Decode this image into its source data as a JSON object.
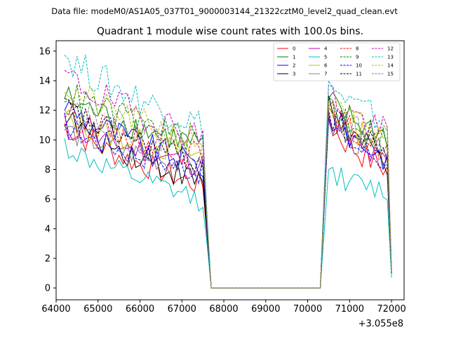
{
  "figure_title": "Data file: modeM0/AS1A05_037T01_9000003144_21322cztM0_level2_quad_clean.evt",
  "chart_data": {
    "type": "line",
    "title": "Quadrant 1 module wise count rates with 100.0s bins.",
    "xlabel": "",
    "ylabel": "",
    "x_offset_label": "+3.055e8",
    "xlim": [
      64000,
      72300
    ],
    "ylim": [
      -0.8,
      16.7
    ],
    "x_ticks": [
      64000,
      65000,
      66000,
      67000,
      68000,
      69000,
      70000,
      71000,
      72000
    ],
    "x_tick_labels": [
      "64000",
      "65000",
      "66000",
      "67000",
      "68000",
      "69000",
      "70000",
      "71000",
      "72000"
    ],
    "y_ticks": [
      0,
      2,
      4,
      6,
      8,
      10,
      12,
      14,
      16
    ],
    "y_tick_labels": [
      "0",
      "2",
      "4",
      "6",
      "8",
      "10",
      "12",
      "14",
      "16"
    ],
    "grid": false,
    "legend": "top-right",
    "segments": [
      {
        "name": "before_gap",
        "x_start": 64200,
        "x_end": 67500,
        "step": 100
      },
      {
        "name": "gap_transition",
        "x": [
          67600,
          67700
        ]
      },
      {
        "name": "gap",
        "x_start": 67700,
        "x_end": 70300,
        "value": 0
      },
      {
        "name": "after_gap",
        "x_start": 70500,
        "x_end": 71900,
        "step": 100
      },
      {
        "name": "end_drop",
        "x": [
          72000
        ]
      }
    ],
    "series": [
      {
        "name": "0",
        "color": "#ff0000",
        "dash": "solid",
        "start": 11.0,
        "end": 6.9,
        "at_67600": 3.5,
        "peak": 11.5,
        "after_end": 8.0,
        "final": 1.0
      },
      {
        "name": "1",
        "color": "#008000",
        "dash": "solid",
        "start": 13.0,
        "end": 9.6,
        "at_67600": 4.5,
        "peak": 12.8,
        "after_end": 10.3,
        "final": 1.2
      },
      {
        "name": "2",
        "color": "#0000ff",
        "dash": "solid",
        "start": 12.5,
        "end": 8.2,
        "at_67600": 4.0,
        "peak": 12.2,
        "after_end": 8.8,
        "final": 1.0
      },
      {
        "name": "3",
        "color": "#000000",
        "dash": "solid",
        "start": 11.7,
        "end": 7.1,
        "at_67600": 3.6,
        "peak": 13.0,
        "after_end": 8.4,
        "final": 1.0
      },
      {
        "name": "4",
        "color": "#bf00bf",
        "dash": "solid",
        "start": 11.0,
        "end": 8.3,
        "at_67600": 4.0,
        "peak": 11.8,
        "after_end": 8.3,
        "final": 1.0
      },
      {
        "name": "5",
        "color": "#00bfbf",
        "dash": "solid",
        "start": 9.7,
        "end": 5.9,
        "at_67600": 3.0,
        "peak": 8.0,
        "after_end": 6.5,
        "final": 0.7
      },
      {
        "name": "6",
        "color": "#bfbf00",
        "dash": "solid",
        "start": 11.5,
        "end": 8.9,
        "at_67600": 4.3,
        "peak": 12.2,
        "after_end": 9.8,
        "final": 1.1
      },
      {
        "name": "7",
        "color": "#808080",
        "dash": "solid",
        "start": 10.8,
        "end": 8.0,
        "at_67600": 3.9,
        "peak": 11.3,
        "after_end": 9.0,
        "final": 1.0
      },
      {
        "name": "8",
        "color": "#ff0000",
        "dash": "dashed",
        "start": 12.0,
        "end": 8.9,
        "at_67600": 4.3,
        "peak": 12.3,
        "after_end": 9.3,
        "final": 1.1
      },
      {
        "name": "9",
        "color": "#008000",
        "dash": "dashed",
        "start": 13.4,
        "end": 9.9,
        "at_67600": 4.6,
        "peak": 12.9,
        "after_end": 10.1,
        "final": 1.2
      },
      {
        "name": "10",
        "color": "#0000ff",
        "dash": "dashed",
        "start": 11.1,
        "end": 7.8,
        "at_67600": 3.8,
        "peak": 11.5,
        "after_end": 8.5,
        "final": 1.0
      },
      {
        "name": "11",
        "color": "#000000",
        "dash": "dashed",
        "start": 12.3,
        "end": 8.4,
        "at_67600": 4.0,
        "peak": 12.0,
        "after_end": 9.2,
        "final": 1.1
      },
      {
        "name": "12",
        "color": "#bf00bf",
        "dash": "dashed",
        "start": 14.5,
        "end": 10.2,
        "at_67600": 4.8,
        "peak": 13.7,
        "after_end": 10.4,
        "final": 1.2
      },
      {
        "name": "13",
        "color": "#00bfbf",
        "dash": "dashed",
        "start": 15.9,
        "end": 11.0,
        "at_67600": 5.0,
        "peak": 14.0,
        "after_end": 11.2,
        "final": 1.2
      },
      {
        "name": "14",
        "color": "#bfbf00",
        "dash": "dashed",
        "start": 13.7,
        "end": 9.8,
        "at_67600": 4.5,
        "peak": 12.6,
        "after_end": 10.3,
        "final": 1.1
      },
      {
        "name": "15",
        "color": "#808080",
        "dash": "dashed",
        "start": 12.8,
        "end": 9.3,
        "at_67600": 4.4,
        "peak": 12.4,
        "after_end": 9.6,
        "final": 1.1
      }
    ]
  }
}
